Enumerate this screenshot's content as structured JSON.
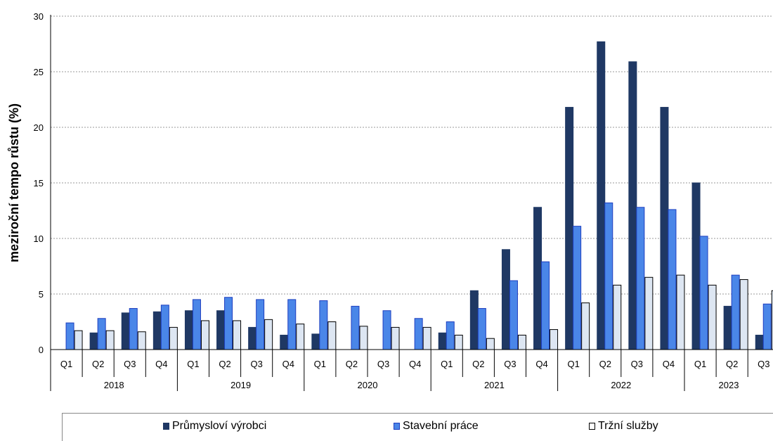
{
  "chart_data": {
    "type": "bar",
    "title": "",
    "ylabel": "meziroční tempo růstu (%)",
    "ylim": [
      0,
      30
    ],
    "yticks": [
      "0",
      "5",
      "10",
      "15",
      "20",
      "25",
      "30"
    ],
    "grid": true,
    "legend_position": "bottom",
    "quarters": [
      "Q1",
      "Q2",
      "Q3",
      "Q4",
      "Q1",
      "Q2",
      "Q3",
      "Q4",
      "Q1",
      "Q2",
      "Q3",
      "Q4",
      "Q1",
      "Q2",
      "Q3",
      "Q4",
      "Q1",
      "Q2",
      "Q3",
      "Q4",
      "Q1",
      "Q2",
      "Q3"
    ],
    "years": [
      {
        "label": "2018",
        "quarters": 4
      },
      {
        "label": "2019",
        "quarters": 4
      },
      {
        "label": "2020",
        "quarters": 4
      },
      {
        "label": "2021",
        "quarters": 4
      },
      {
        "label": "2022",
        "quarters": 4
      },
      {
        "label": "2023",
        "quarters": 3
      }
    ],
    "series": [
      {
        "name": "Průmysloví výrobci",
        "color": "#1f3864",
        "values": [
          0,
          1.5,
          3.3,
          3.4,
          3.5,
          3.5,
          2.0,
          1.3,
          1.4,
          0,
          0,
          0,
          1.5,
          5.3,
          9.0,
          12.8,
          21.8,
          27.7,
          25.9,
          21.8,
          15.0,
          3.9,
          1.3
        ]
      },
      {
        "name": "Stavební práce",
        "color": "#4a86e8",
        "values": [
          2.4,
          2.8,
          3.7,
          4.0,
          4.5,
          4.7,
          4.5,
          4.5,
          4.4,
          3.9,
          3.5,
          2.8,
          2.5,
          3.7,
          6.2,
          7.9,
          11.1,
          13.2,
          12.8,
          12.6,
          10.2,
          6.7,
          4.1
        ]
      },
      {
        "name": "Tržní služby",
        "color": "#dde6f2",
        "values": [
          1.7,
          1.7,
          1.6,
          2.0,
          2.6,
          2.6,
          2.7,
          2.3,
          2.5,
          2.1,
          2.0,
          2.0,
          1.3,
          1.0,
          1.3,
          1.8,
          4.2,
          5.8,
          6.5,
          6.7,
          5.8,
          6.3,
          5.3
        ]
      }
    ]
  }
}
